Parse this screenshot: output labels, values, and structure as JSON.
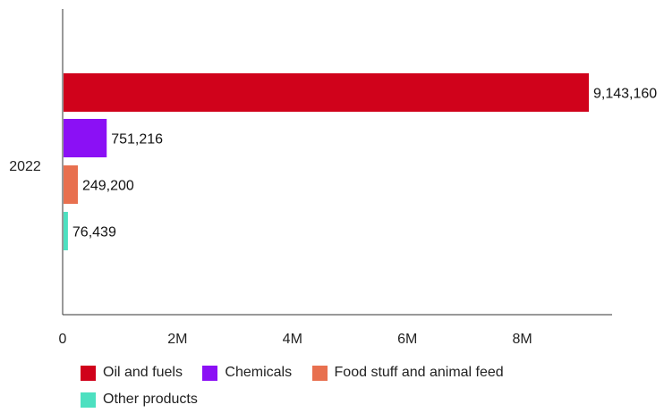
{
  "chart_data": {
    "type": "bar",
    "orientation": "horizontal",
    "categories": [
      "2022"
    ],
    "series": [
      {
        "name": "Oil and fuels",
        "values": [
          9143160
        ],
        "label": "9,143,160",
        "color": "#d0021b"
      },
      {
        "name": "Chemicals",
        "values": [
          751216
        ],
        "label": "751,216",
        "color": "#8b10f5"
      },
      {
        "name": "Food stuff and animal feed",
        "values": [
          249200
        ],
        "label": "249,200",
        "color": "#e8704f"
      },
      {
        "name": "Other products",
        "values": [
          76439
        ],
        "label": "76,439",
        "color": "#4de0c0"
      }
    ],
    "xlim": [
      0,
      9600000
    ],
    "x_ticks": [
      {
        "value": 0,
        "label": "0"
      },
      {
        "value": 2000000,
        "label": "2M"
      },
      {
        "value": 4000000,
        "label": "4M"
      },
      {
        "value": 6000000,
        "label": "6M"
      },
      {
        "value": 8000000,
        "label": "8M"
      }
    ],
    "grid": false,
    "legend_position": "bottom"
  }
}
